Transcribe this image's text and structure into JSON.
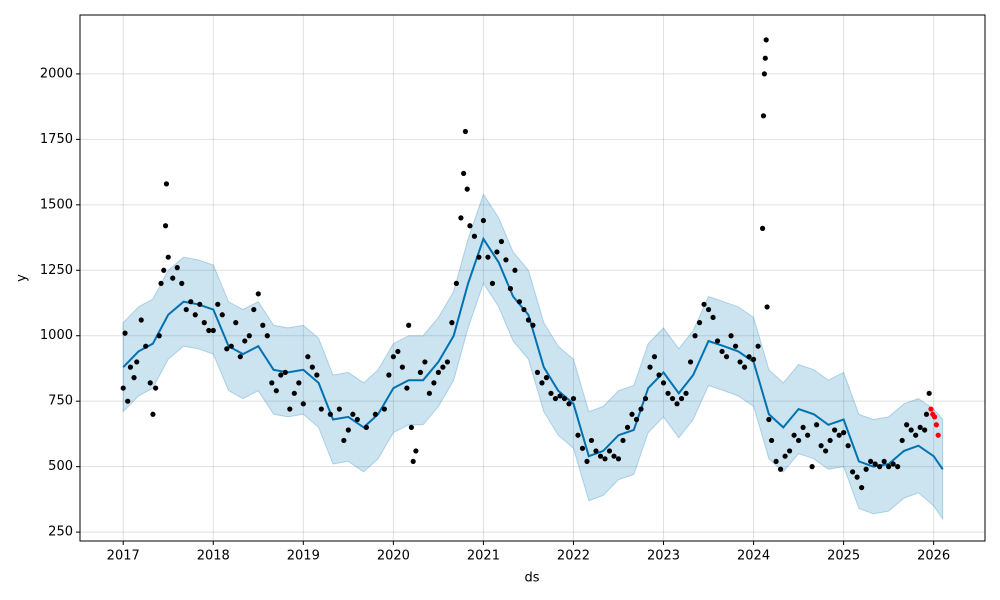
{
  "chart_data": {
    "type": "forecast",
    "xlabel": "ds",
    "ylabel": "y",
    "xlim": [
      2016.52,
      2026.57
    ],
    "xticks": [
      2017,
      2018,
      2019,
      2020,
      2021,
      2022,
      2023,
      2024,
      2025,
      2026
    ],
    "ylim": [
      216,
      2225
    ],
    "yticks": [
      250,
      500,
      750,
      1000,
      1250,
      1500,
      1750,
      2000
    ],
    "grid": true,
    "forecast": {
      "color": "#0072B2",
      "band_color": "#0072B2",
      "x": [
        2017,
        2017.17,
        2017.33,
        2017.5,
        2017.67,
        2017.83,
        2018,
        2018.17,
        2018.33,
        2018.5,
        2018.67,
        2018.83,
        2019,
        2019.17,
        2019.33,
        2019.5,
        2019.67,
        2019.83,
        2020,
        2020.17,
        2020.33,
        2020.5,
        2020.67,
        2020.83,
        2021,
        2021.17,
        2021.33,
        2021.5,
        2021.67,
        2021.83,
        2022,
        2022.17,
        2022.33,
        2022.5,
        2022.67,
        2022.83,
        2023,
        2023.17,
        2023.33,
        2023.5,
        2023.67,
        2023.83,
        2024,
        2024.17,
        2024.33,
        2024.5,
        2024.67,
        2024.83,
        2025,
        2025.17,
        2025.33,
        2025.5,
        2025.67,
        2025.83,
        2026,
        2026.1
      ],
      "values": [
        880,
        940,
        970,
        1080,
        1130,
        1120,
        1100,
        960,
        930,
        960,
        870,
        860,
        870,
        820,
        680,
        690,
        650,
        700,
        800,
        830,
        830,
        900,
        1000,
        1200,
        1370,
        1280,
        1150,
        1080,
        880,
        790,
        740,
        540,
        560,
        620,
        640,
        800,
        860,
        780,
        850,
        980,
        960,
        940,
        900,
        700,
        650,
        720,
        700,
        660,
        680,
        520,
        500,
        510,
        560,
        580,
        540,
        490
      ],
      "upper": [
        1050,
        1110,
        1140,
        1250,
        1300,
        1290,
        1270,
        1130,
        1100,
        1130,
        1040,
        1030,
        1040,
        990,
        850,
        860,
        820,
        870,
        970,
        1000,
        1000,
        1070,
        1170,
        1370,
        1540,
        1450,
        1320,
        1250,
        1050,
        960,
        910,
        710,
        730,
        790,
        810,
        970,
        1030,
        950,
        1020,
        1150,
        1130,
        1110,
        1070,
        870,
        820,
        890,
        870,
        830,
        860,
        700,
        680,
        690,
        740,
        760,
        720,
        680
      ],
      "lower": [
        710,
        770,
        800,
        910,
        960,
        950,
        930,
        790,
        760,
        790,
        700,
        690,
        700,
        650,
        510,
        520,
        480,
        530,
        630,
        660,
        660,
        730,
        830,
        1030,
        1200,
        1110,
        980,
        910,
        710,
        620,
        570,
        370,
        390,
        450,
        470,
        630,
        690,
        610,
        680,
        810,
        790,
        770,
        730,
        530,
        480,
        550,
        530,
        490,
        500,
        340,
        320,
        330,
        380,
        400,
        350,
        300
      ]
    },
    "observed": {
      "color": "#000000",
      "x": [
        2017,
        2017.02,
        2017.05,
        2017.08,
        2017.12,
        2017.15,
        2017.2,
        2017.25,
        2017.3,
        2017.33,
        2017.36,
        2017.4,
        2017.42,
        2017.45,
        2017.47,
        2017.48,
        2017.5,
        2017.55,
        2017.6,
        2017.65,
        2017.7,
        2017.75,
        2017.8,
        2017.85,
        2017.9,
        2017.95,
        2018,
        2018.05,
        2018.1,
        2018.15,
        2018.2,
        2018.25,
        2018.3,
        2018.35,
        2018.4,
        2018.45,
        2018.5,
        2018.55,
        2018.6,
        2018.65,
        2018.7,
        2018.75,
        2018.8,
        2018.85,
        2018.9,
        2018.95,
        2019,
        2019.05,
        2019.1,
        2019.15,
        2019.2,
        2019.3,
        2019.4,
        2019.45,
        2019.5,
        2019.55,
        2019.6,
        2019.7,
        2019.8,
        2019.9,
        2019.95,
        2020,
        2020.05,
        2020.1,
        2020.15,
        2020.17,
        2020.2,
        2020.22,
        2020.25,
        2020.3,
        2020.35,
        2020.4,
        2020.45,
        2020.5,
        2020.55,
        2020.6,
        2020.65,
        2020.7,
        2020.75,
        2020.78,
        2020.8,
        2020.82,
        2020.85,
        2020.9,
        2020.95,
        2021,
        2021.05,
        2021.1,
        2021.15,
        2021.2,
        2021.25,
        2021.3,
        2021.35,
        2021.4,
        2021.45,
        2021.5,
        2021.55,
        2021.6,
        2021.65,
        2021.7,
        2021.75,
        2021.8,
        2021.85,
        2021.9,
        2021.95,
        2022,
        2022.05,
        2022.1,
        2022.15,
        2022.2,
        2022.25,
        2022.3,
        2022.35,
        2022.4,
        2022.45,
        2022.5,
        2022.55,
        2022.6,
        2022.65,
        2022.7,
        2022.75,
        2022.8,
        2022.85,
        2022.9,
        2022.95,
        2023,
        2023.05,
        2023.1,
        2023.15,
        2023.2,
        2023.25,
        2023.3,
        2023.35,
        2023.4,
        2023.45,
        2023.5,
        2023.55,
        2023.6,
        2023.65,
        2023.7,
        2023.75,
        2023.8,
        2023.85,
        2023.9,
        2023.95,
        2024,
        2024.05,
        2024.1,
        2024.11,
        2024.12,
        2024.13,
        2024.14,
        2024.15,
        2024.17,
        2024.2,
        2024.25,
        2024.3,
        2024.35,
        2024.4,
        2024.45,
        2024.5,
        2024.55,
        2024.6,
        2024.65,
        2024.7,
        2024.75,
        2024.8,
        2024.85,
        2024.9,
        2024.95,
        2025,
        2025.05,
        2025.1,
        2025.15,
        2025.2,
        2025.25,
        2025.3,
        2025.35,
        2025.4,
        2025.45,
        2025.5,
        2025.55,
        2025.6,
        2025.65,
        2025.7,
        2025.75,
        2025.8,
        2025.85,
        2025.9,
        2025.92,
        2025.95
      ],
      "y": [
        800,
        1010,
        750,
        880,
        840,
        900,
        1060,
        960,
        820,
        700,
        800,
        1000,
        1200,
        1250,
        1420,
        1580,
        1300,
        1220,
        1260,
        1200,
        1100,
        1130,
        1080,
        1120,
        1050,
        1020,
        1020,
        1120,
        1080,
        950,
        960,
        1050,
        920,
        980,
        1000,
        1100,
        1160,
        1040,
        1000,
        820,
        790,
        850,
        860,
        720,
        780,
        820,
        740,
        920,
        880,
        850,
        720,
        700,
        720,
        600,
        640,
        700,
        680,
        650,
        700,
        720,
        850,
        920,
        940,
        880,
        800,
        1040,
        650,
        520,
        560,
        860,
        900,
        780,
        820,
        860,
        880,
        900,
        1050,
        1200,
        1450,
        1620,
        1780,
        1560,
        1420,
        1380,
        1300,
        1440,
        1300,
        1200,
        1320,
        1360,
        1290,
        1180,
        1250,
        1130,
        1100,
        1060,
        1040,
        860,
        820,
        840,
        780,
        760,
        770,
        760,
        740,
        760,
        620,
        570,
        520,
        600,
        560,
        540,
        530,
        560,
        540,
        530,
        600,
        650,
        700,
        680,
        720,
        760,
        880,
        920,
        850,
        820,
        780,
        760,
        740,
        760,
        780,
        900,
        1000,
        1050,
        1120,
        1100,
        1070,
        980,
        940,
        920,
        1000,
        960,
        900,
        880,
        920,
        910,
        960,
        1410,
        1840,
        2000,
        2060,
        2130,
        1110,
        680,
        600,
        520,
        490,
        540,
        560,
        620,
        600,
        650,
        620,
        500,
        660,
        580,
        560,
        600,
        640,
        620,
        630,
        580,
        480,
        460,
        420,
        490,
        520,
        510,
        500,
        520,
        500,
        510,
        500,
        600,
        660,
        640,
        620,
        650,
        640,
        700,
        780
      ]
    },
    "recent": {
      "color": "#ff0000",
      "x": [
        2025.97,
        2025.99,
        2026.01,
        2026.03,
        2026.05
      ],
      "y": [
        720,
        700,
        690,
        660,
        620
      ]
    }
  }
}
